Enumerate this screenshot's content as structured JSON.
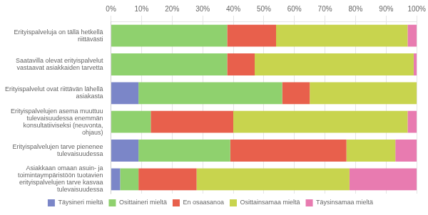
{
  "chart_data": {
    "type": "bar",
    "orientation": "horizontal",
    "stacked": true,
    "categories": [
      "Erityispalveluja on tällä hetkellä\nriittävästi",
      "Saatavilla olevat erityispalvelut\nvastaavat asiakkaiden tarvetta",
      "Erityispalvelut ovat riittävän lähellä\nasiakasta",
      "Erityispalvelujen asema muuttuu\ntulevaisuudessa enemmän\nkonsultatiiviseksi (neuvonta,\nohjaus)",
      "Erityispalvelujen tarve pienenee\ntulevaisuudessa",
      "Asiakkaan omaan asuin- ja\ntoimintaympäristöön tuotavien\nerityispalvelujen tarve kasvaa\ntulevaisuudessa"
    ],
    "series": [
      {
        "name": "Täysineri mieltä",
        "color": "#7b86c8",
        "values": [
          0,
          0,
          9,
          0,
          9,
          3
        ]
      },
      {
        "name": "Osittaineri mieltä",
        "color": "#8fd16e",
        "values": [
          38,
          38,
          47,
          13,
          30,
          6
        ]
      },
      {
        "name": "En osaasanoa",
        "color": "#e8604c",
        "values": [
          16,
          9,
          9,
          27,
          38,
          19
        ]
      },
      {
        "name": "Osittainsamaa mieltä",
        "color": "#c8d44e",
        "values": [
          43,
          52,
          35,
          57,
          16,
          50
        ]
      },
      {
        "name": "Täysinsamaa mieltä",
        "color": "#e87bb0",
        "values": [
          3,
          1,
          0,
          3,
          7,
          22
        ]
      }
    ],
    "xlim": [
      0,
      100
    ],
    "xticks": [
      {
        "value": 0,
        "label": "0%"
      },
      {
        "value": 10,
        "label": "10%"
      },
      {
        "value": 20,
        "label": "20%"
      },
      {
        "value": 30,
        "label": "30%"
      },
      {
        "value": 40,
        "label": "40%"
      },
      {
        "value": 50,
        "label": "50%"
      },
      {
        "value": 60,
        "label": "60%"
      },
      {
        "value": 70,
        "label": "70%"
      },
      {
        "value": 80,
        "label": "80%"
      },
      {
        "value": 90,
        "label": "90%"
      },
      {
        "value": 100,
        "label": "100%"
      }
    ],
    "grid": true,
    "legend": "bottom"
  }
}
